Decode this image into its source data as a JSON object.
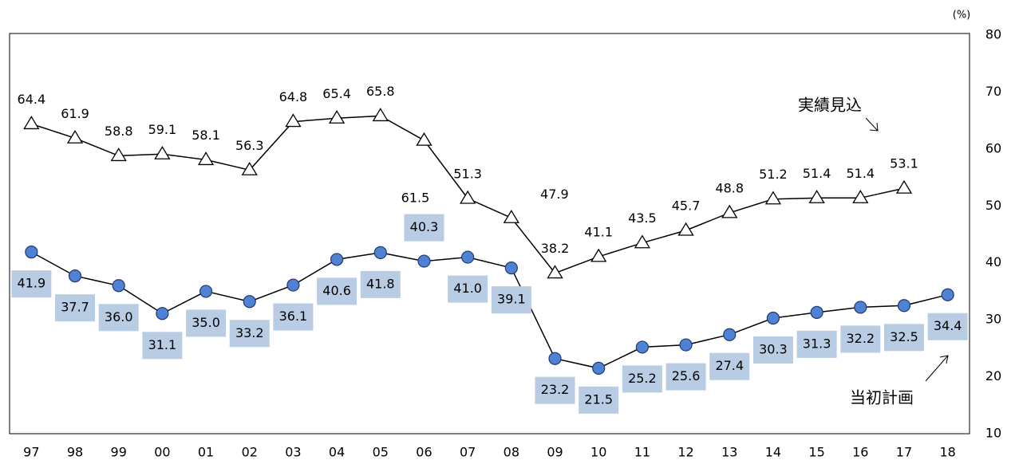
{
  "chart_data": {
    "type": "line",
    "y_unit": "(%)",
    "categories": [
      "97",
      "98",
      "99",
      "00",
      "01",
      "02",
      "03",
      "04",
      "05",
      "06",
      "07",
      "08",
      "09",
      "10",
      "11",
      "12",
      "13",
      "14",
      "15",
      "16",
      "17",
      "18"
    ],
    "series": [
      {
        "name": "実績見込",
        "marker": "triangle",
        "color": "#000000",
        "values": [
          64.4,
          61.9,
          58.8,
          59.1,
          58.1,
          56.3,
          64.8,
          65.4,
          65.8,
          61.5,
          51.3,
          47.9,
          38.2,
          41.1,
          43.5,
          45.7,
          48.8,
          51.2,
          51.4,
          51.4,
          53.1,
          null
        ],
        "value_labels": [
          "64.4",
          "61.9",
          "58.8",
          "59.1",
          "58.1",
          "56.3",
          "64.8",
          "65.4",
          "65.8",
          "61.5",
          "51.3",
          "47.9",
          "38.2",
          "41.1",
          "43.5",
          "45.7",
          "48.8",
          "51.2",
          "51.4",
          "51.4",
          "53.1",
          null
        ]
      },
      {
        "name": "当初計画",
        "marker": "circle",
        "color": "#4f81d4",
        "values": [
          41.9,
          37.7,
          36.0,
          31.1,
          35.0,
          33.2,
          36.1,
          40.6,
          41.8,
          40.3,
          41.0,
          39.1,
          23.2,
          21.5,
          25.2,
          25.6,
          27.4,
          30.3,
          31.3,
          32.2,
          32.5,
          34.4
        ],
        "value_labels": [
          "41.9",
          "37.7",
          "36.0",
          "31.1",
          "35.0",
          "33.2",
          "36.1",
          "40.6",
          "41.8",
          "40.3",
          "41.0",
          "39.1",
          "23.2",
          "21.5",
          "25.2",
          "25.6",
          "27.4",
          "30.3",
          "31.3",
          "32.2",
          "32.5",
          "34.4"
        ]
      }
    ],
    "ylim": [
      10,
      80
    ],
    "yticks": [
      10,
      20,
      30,
      40,
      50,
      60,
      70,
      80
    ],
    "y_axis_side": "right"
  }
}
